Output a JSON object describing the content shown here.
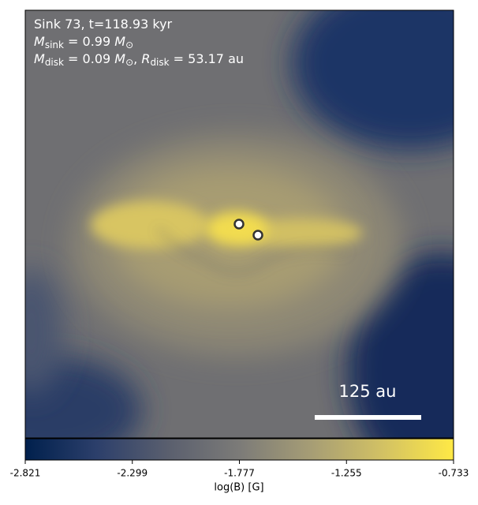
{
  "chart_data": {
    "type": "image",
    "annotations": [
      [
        {
          "text": "Sink 73, t=118.93 kyr"
        }
      ],
      [
        {
          "text": "M",
          "style": "italic"
        },
        {
          "text": "sink",
          "style": "sub"
        },
        {
          "text": " = 0.99 "
        },
        {
          "text": "M",
          "style": "italic"
        },
        {
          "text": "⊙",
          "style": "sub"
        }
      ],
      [
        {
          "text": "M",
          "style": "italic"
        },
        {
          "text": "disk",
          "style": "sub"
        },
        {
          "text": " = 0.09 "
        },
        {
          "text": "M",
          "style": "italic"
        },
        {
          "text": "⊙",
          "style": "sub"
        },
        {
          "text": ", "
        },
        {
          "text": "R",
          "style": "italic"
        },
        {
          "text": "disk",
          "style": "sub"
        },
        {
          "text": " = 53.17 au"
        }
      ]
    ],
    "scale_bar_label": "125 au",
    "colorbar": {
      "label": "log(B) [G]",
      "lim": [
        -2.821,
        -0.733
      ],
      "ticks": [
        -2.821,
        -2.299,
        -1.777,
        -1.255,
        -0.733
      ],
      "colors": [
        "#00204d",
        "#2c3f6b",
        "#5a5f6e",
        "#7c7b78",
        "#a69d75",
        "#d2c164",
        "#ffe945"
      ]
    }
  }
}
